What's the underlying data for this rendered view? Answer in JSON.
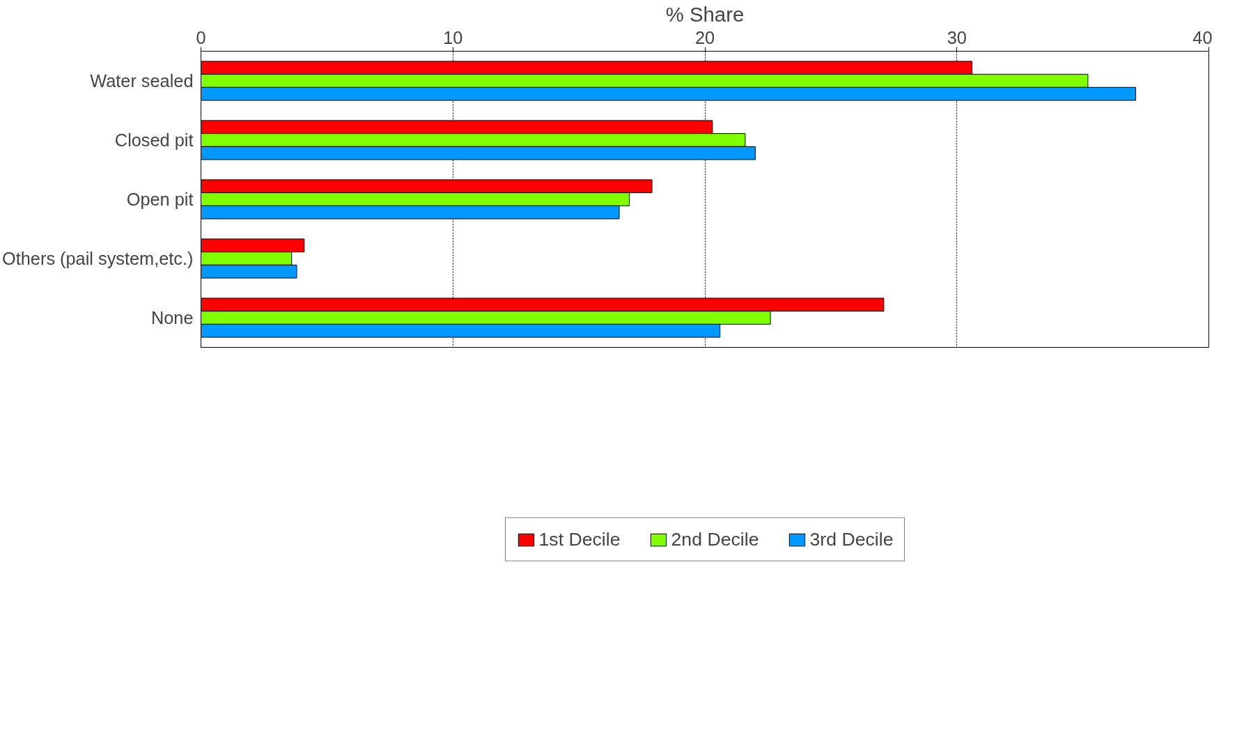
{
  "chart_data": {
    "type": "bar",
    "orientation": "horizontal",
    "xlabel": "% Share",
    "categories": [
      "Water sealed",
      "Closed pit",
      "Open pit",
      "Others (pail system,etc.)",
      "None"
    ],
    "series": [
      {
        "name": "1st Decile",
        "color": "#ff0000",
        "values": [
          30.6,
          20.3,
          17.9,
          4.1,
          27.1
        ]
      },
      {
        "name": "2nd Decile",
        "color": "#80ff00",
        "values": [
          35.2,
          21.6,
          17.0,
          3.6,
          22.6
        ]
      },
      {
        "name": "3rd Decile",
        "color": "#0099ff",
        "values": [
          37.1,
          22.0,
          16.6,
          3.8,
          20.6
        ]
      }
    ],
    "xlim": [
      0,
      40
    ],
    "xticks": [
      0,
      10,
      20,
      30,
      40
    ],
    "grid": "x",
    "legend": "bottom"
  }
}
